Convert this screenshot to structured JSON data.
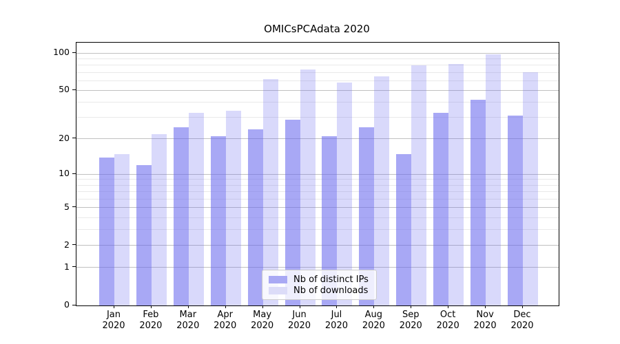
{
  "chart_data": {
    "type": "bar",
    "title": "OMICsPCAdata 2020",
    "categories": [
      "Jan 2020",
      "Feb 2020",
      "Mar 2020",
      "Apr 2020",
      "May 2020",
      "Jun 2020",
      "Jul 2020",
      "Aug 2020",
      "Sep 2020",
      "Oct 2020",
      "Nov 2020",
      "Dec 2020"
    ],
    "series": [
      {
        "name": "Nb of distinct IPs",
        "color": "#6666ee",
        "fill_alpha": 0.57,
        "legend_swatch": "#a9a9f4",
        "values": [
          14,
          12,
          25,
          21,
          24,
          29,
          21,
          25,
          15,
          33,
          42,
          31
        ]
      },
      {
        "name": "Nb of downloads",
        "color": "#6666ee",
        "fill_alpha": 0.25,
        "legend_swatch": "#dcdcf8",
        "values": [
          15,
          22,
          33,
          34,
          62,
          74,
          58,
          65,
          80,
          82,
          97,
          70
        ]
      }
    ],
    "xlabel": "",
    "ylabel": "",
    "yscale": "symlog-log1p",
    "ylim": [
      0,
      121
    ],
    "yticks": [
      0,
      1,
      2,
      5,
      10,
      20,
      50,
      100
    ],
    "yticks_minor": [
      3,
      4,
      6,
      7,
      8,
      9,
      30,
      40,
      60,
      70,
      80,
      90
    ],
    "grid": "horizontal",
    "legend_position": "bottom-center-inside",
    "axis_color": "#000000",
    "grid_major_color": "#c0c0c0",
    "grid_minor_color": "#e9e9e9"
  }
}
